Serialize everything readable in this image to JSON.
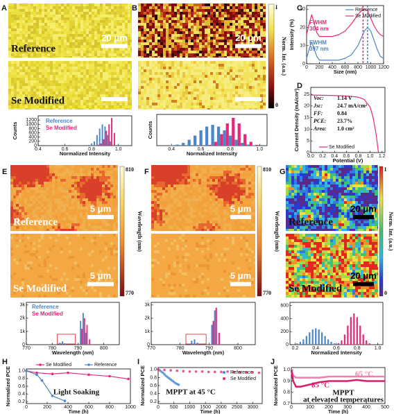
{
  "chart_data": [
    {
      "type": "image",
      "panel": "A",
      "images": [
        {
          "label": "Reference",
          "scale_bar": "20 μm"
        },
        {
          "label": "Se Modified"
        }
      ]
    },
    {
      "type": "image",
      "panel": "B",
      "images": [
        {
          "scale_bar": "20 μm"
        }
      ],
      "colorbar": {
        "max_label": "I",
        "min": 0,
        "title": "Norm. Int. (a.u.)"
      }
    },
    {
      "type": "line",
      "panel": "C",
      "xlabel": "Size (nm)",
      "ylabel": "Intensity (%)",
      "xlim": [
        0,
        1200
      ],
      "xticks": [
        0,
        200,
        400,
        600,
        800,
        1000,
        1200
      ],
      "ylim": [
        0,
        32
      ],
      "yticks": [
        0,
        10,
        20,
        30
      ],
      "legend": "upper right",
      "x": [
        0,
        40,
        80,
        120,
        160,
        200,
        300,
        400,
        500,
        600,
        700,
        800,
        850,
        900,
        950,
        1000,
        1050,
        1100,
        1150,
        1200
      ],
      "series": [
        {
          "name": "Reference",
          "color": "#4a86c8",
          "peak": 950,
          "values": [
            3,
            8,
            12,
            8,
            4,
            2,
            2,
            2,
            2,
            3,
            5,
            10,
            14,
            18,
            20,
            18,
            13,
            8,
            4,
            3
          ]
        },
        {
          "name": "Se Modified",
          "color": "#e6287a",
          "peak": 880,
          "values": [
            16,
            22,
            27,
            22,
            17,
            15,
            15,
            15,
            16,
            18,
            22,
            27,
            29,
            30,
            29,
            25,
            21,
            18,
            16,
            15
          ]
        }
      ],
      "annotations": [
        "FWHM",
        "304 nm",
        "FWHM",
        "397 nm"
      ]
    },
    {
      "type": "bar",
      "xlabel": "Normalized Intensity",
      "ylabel": "Counts",
      "xlim": [
        0.4,
        1.1
      ],
      "xticks": [
        0.4,
        0.6,
        0.8,
        {
          "value": 1,
          "label": "1.0"
        }
      ],
      "ylim": [
        0,
        1400
      ],
      "yticks": [
        0,
        200,
        400,
        600,
        800,
        1000,
        1200
      ],
      "legend": "upper left",
      "series": [
        {
          "name": "Reference",
          "color": "#4a86c8",
          "x": [
            0.78,
            0.8,
            0.82,
            0.84,
            0.86,
            0.88,
            0.9,
            0.92,
            0.94
          ],
          "values": [
            30,
            100,
            200,
            500,
            800,
            1000,
            900,
            500,
            200
          ]
        },
        {
          "name": "Se Modified",
          "color": "#e6287a",
          "x": [
            0.85,
            0.87,
            0.89,
            0.91,
            0.93,
            0.95,
            0.97
          ],
          "values": [
            40,
            100,
            300,
            700,
            1000,
            1300,
            600
          ]
        }
      ]
    },
    {
      "type": "bar",
      "xlabel": "Normalized Intensity",
      "ylabel": "Counts",
      "xlim": [
        0.3,
        1.05
      ],
      "xticks": [
        0.4,
        0.6,
        0.8,
        {
          "value": 1,
          "label": "1.0"
        }
      ],
      "ylim": [
        0,
        90
      ],
      "series": [
        {
          "color": "#4a86c8",
          "x": [
            0.4,
            0.44,
            0.48,
            0.52,
            0.56,
            0.6,
            0.64,
            0.68,
            0.72,
            0.76,
            0.8,
            0.84,
            0.88,
            0.92,
            0.96
          ],
          "values": [
            1,
            3,
            8,
            17,
            29,
            44,
            55,
            60,
            55,
            44,
            29,
            17,
            8,
            3,
            1
          ]
        },
        {
          "color": "#e6287a",
          "x": [
            0.66,
            0.7,
            0.74,
            0.78,
            0.82,
            0.86,
            0.9,
            0.94,
            0.98
          ],
          "values": [
            2,
            11,
            33,
            64,
            80,
            64,
            33,
            11,
            2
          ]
        }
      ]
    },
    {
      "type": "line",
      "panel": "D",
      "xlabel": "Potential (V)",
      "ylabel": "Current Density (mA/cm²)",
      "xlim": [
        0,
        1.25
      ],
      "xticks": [
        {
          "value": 0,
          "label": "0.0"
        },
        0.2,
        0.4,
        0.6,
        0.8,
        {
          "value": 1,
          "label": "1.0"
        },
        1.2
      ],
      "ylim": [
        0,
        28
      ],
      "yticks": [
        0,
        5,
        10,
        15,
        20,
        25
      ],
      "legend": "lower left",
      "x": [
        0,
        0.2,
        0.4,
        0.6,
        0.8,
        0.9,
        1.0,
        1.05,
        1.1,
        1.14
      ],
      "series": [
        {
          "name": "Se Modified",
          "color": "#e6287a",
          "values": [
            24.7,
            24.6,
            24.5,
            24.3,
            23.8,
            22.8,
            19.5,
            15,
            8,
            0
          ]
        }
      ],
      "stats": [
        {
          "label": "Voc:",
          "value": "1.14 V"
        },
        {
          "label": "Jsc:",
          "value": "24.7 mA/cm²"
        },
        {
          "label": "FF:",
          "value": "0.84"
        },
        {
          "label": "PCE:",
          "value": "23.7%"
        },
        {
          "label": "Area:",
          "value": "1.0 cm²"
        }
      ]
    },
    {
      "type": "image",
      "panel": "E",
      "images": [
        {
          "label": "Reference",
          "scale_bar": "5 μm"
        },
        {
          "label": "Se Modified",
          "scale_bar": "5 μm"
        }
      ],
      "colorbar": {
        "max": 810,
        "min": 770,
        "title": "Wavelength (nm)"
      }
    },
    {
      "type": "image",
      "panel": "F",
      "images": [
        {
          "scale_bar": "5 μm"
        },
        {
          "scale_bar": "5 μm"
        }
      ],
      "colorbar": {
        "max": 810,
        "min": 770,
        "title": "Wavelength (nm)"
      }
    },
    {
      "type": "image",
      "panel": "G",
      "images": [
        {
          "label": "Reference",
          "scale_bar": "20 μm"
        },
        {
          "label": "Se Modified",
          "scale_bar": "20 μm"
        }
      ],
      "colorbar": {
        "max_label": "I",
        "min": 0,
        "title": "Norm. Int. (a.u.)"
      }
    },
    {
      "type": "bar",
      "xlabel": "Wavelength (nm)",
      "xlim": [
        770,
        806
      ],
      "xticks": [
        770,
        780,
        790,
        800
      ],
      "ylim": [
        0,
        3200
      ],
      "yticks": [
        0,
        {
          "value": 1000,
          "label": "1k"
        },
        {
          "value": 2000,
          "label": "2k"
        },
        {
          "value": 3000,
          "label": "3k"
        }
      ],
      "legend": "upper left",
      "highlight_x": [
        782,
        789
      ],
      "series": [
        {
          "name": "Reference",
          "color": "#4a86c8",
          "x": [
            783,
            784,
            785,
            791,
            792,
            793
          ],
          "values": [
            150,
            250,
            100,
            1800,
            2400,
            900
          ]
        },
        {
          "name": "Se Modified",
          "color": "#e6287a",
          "x": [
            791.5,
            792.5,
            793.5,
            794.5
          ],
          "values": [
            1200,
            2000,
            1500,
            400
          ]
        }
      ]
    },
    {
      "type": "bar",
      "xlabel": "Wavelength (nm)",
      "xlim": [
        770,
        806
      ],
      "xticks": [
        770,
        780,
        790,
        800
      ],
      "ylim": [
        0,
        3200
      ],
      "yticks": [
        0,
        {
          "value": 1000,
          "label": "1k"
        },
        {
          "value": 2000,
          "label": "2k"
        },
        {
          "value": 3000,
          "label": "3k"
        }
      ],
      "highlight_x": [
        782,
        789
      ],
      "series": [
        {
          "color": "#4a86c8",
          "x": [
            784,
            785,
            786,
            791,
            792
          ],
          "values": [
            300,
            400,
            150,
            1500,
            2600
          ]
        },
        {
          "color": "#e6287a",
          "x": [
            791.5,
            792.5,
            793.5
          ],
          "values": [
            1800,
            2800,
            900
          ]
        }
      ]
    },
    {
      "type": "bar",
      "xlabel": "Normalized Intensity",
      "xlim": [
        0.15,
        1.05
      ],
      "xticks": [
        0.2,
        0.4,
        0.6,
        0.8,
        {
          "value": 1,
          "label": "1.0"
        }
      ],
      "ylim": [
        0,
        650
      ],
      "yticks": [
        0,
        200,
        400,
        600
      ],
      "series": [
        {
          "color": "#4a86c8",
          "x": [
            0.22,
            0.25,
            0.28,
            0.31,
            0.34,
            0.37,
            0.4,
            0.43,
            0.46,
            0.49,
            0.52,
            0.55,
            0.58,
            0.61
          ],
          "values": [
            20,
            43,
            81,
            133,
            189,
            233,
            250,
            233,
            189,
            133,
            81,
            43,
            20,
            8
          ]
        },
        {
          "color": "#e6287a",
          "x": [
            0.62,
            0.65,
            0.68,
            0.71,
            0.74,
            0.77,
            0.8,
            0.83,
            0.86,
            0.89,
            0.92
          ],
          "values": [
            21,
            65,
            156,
            293,
            423,
            480,
            423,
            293,
            156,
            65,
            21
          ]
        }
      ]
    },
    {
      "type": "line",
      "panel": "H",
      "markers": true,
      "xlabel": "Time (h)",
      "ylabel": "Normalized PCE",
      "xlim": [
        0,
        1000
      ],
      "xticks": [
        0,
        200,
        400,
        600,
        800,
        1000
      ],
      "ylim": [
        0.15,
        1.05
      ],
      "yticks": [
        0.2,
        0.4,
        0.6,
        0.8,
        {
          "value": 1,
          "label": "1.0"
        }
      ],
      "legend": "upper center",
      "series": [
        {
          "name": "Se Modified",
          "color": "#e6287a",
          "x": [
            0,
            100,
            250,
            400,
            600,
            800,
            980
          ],
          "values": [
            1.0,
            0.95,
            0.92,
            0.95,
            0.9,
            0.86,
            0.79
          ]
        },
        {
          "name": "Reference",
          "color": "#4a86c8",
          "x": [
            0,
            100,
            150,
            250,
            370
          ],
          "values": [
            1.0,
            0.9,
            0.75,
            0.35,
            0.22
          ]
        }
      ],
      "annotations": [
        "Light Soaking"
      ]
    },
    {
      "type": "scatter",
      "panel": "I",
      "xlabel": "Time (h)",
      "ylabel": "Normalized PCE",
      "xlim": [
        0,
        3300
      ],
      "xticks": [
        0,
        500,
        1000,
        1500,
        2000,
        2500,
        3000
      ],
      "ylim": [
        0.15,
        1.05
      ],
      "yticks": [
        0.2,
        0.4,
        0.6,
        0.8,
        {
          "value": 1,
          "label": "1.0"
        }
      ],
      "legend": "upper right",
      "series": [
        {
          "name": "Reference",
          "color": "#4a86c8",
          "x": [
            0,
            50,
            100,
            150,
            200,
            250,
            300,
            350,
            400,
            450,
            500,
            550,
            600,
            650
          ],
          "values": [
            1.0,
            0.98,
            0.95,
            0.92,
            0.88,
            0.84,
            0.81,
            0.78,
            0.75,
            0.72,
            0.69,
            0.66,
            0.64,
            0.62
          ]
        },
        {
          "name": "Se Modified",
          "color": "#e6287a",
          "x": [
            0,
            200,
            400,
            600,
            800,
            1000,
            1200,
            1400,
            1600,
            1800,
            2000,
            2200,
            2400,
            2600,
            2800,
            3000,
            3200
          ],
          "values": [
            1.0,
            0.99,
            0.98,
            0.97,
            0.96,
            0.95,
            0.95,
            0.95,
            0.94,
            0.94,
            0.94,
            0.95,
            0.94,
            0.93,
            0.93,
            0.93,
            0.92
          ]
        }
      ],
      "annotations": [
        "MPPT at 45 °C"
      ]
    },
    {
      "type": "line",
      "panel": "J",
      "xlabel": "Time (h)",
      "ylabel": "Normalized PCE",
      "xlim": [
        0,
        500
      ],
      "xticks": [
        0,
        100,
        200,
        300,
        400,
        500
      ],
      "ylim": [
        0.7,
        1.02
      ],
      "yticks": [
        0.7,
        0.8,
        0.9,
        {
          "value": 1,
          "label": "1.0"
        }
      ],
      "x": [
        0,
        10,
        25,
        50,
        100,
        150,
        200,
        250,
        300,
        350,
        400,
        450,
        500
      ],
      "series": [
        {
          "name": "65 °C",
          "color": "#ee7fae",
          "values": [
            1.0,
            0.95,
            0.93,
            0.93,
            0.93,
            0.93,
            0.94,
            0.94,
            0.94,
            0.94,
            0.94,
            0.94,
            0.94
          ]
        },
        {
          "name": "85 °C",
          "color": "#d81b6a",
          "values": [
            1.0,
            0.9,
            0.85,
            0.85,
            0.87,
            0.89,
            0.9,
            0.9,
            0.9,
            0.91,
            0.9,
            0.9,
            0.9
          ]
        }
      ],
      "annotations": [
        "MPPT",
        "at elevated temperatures"
      ]
    }
  ]
}
